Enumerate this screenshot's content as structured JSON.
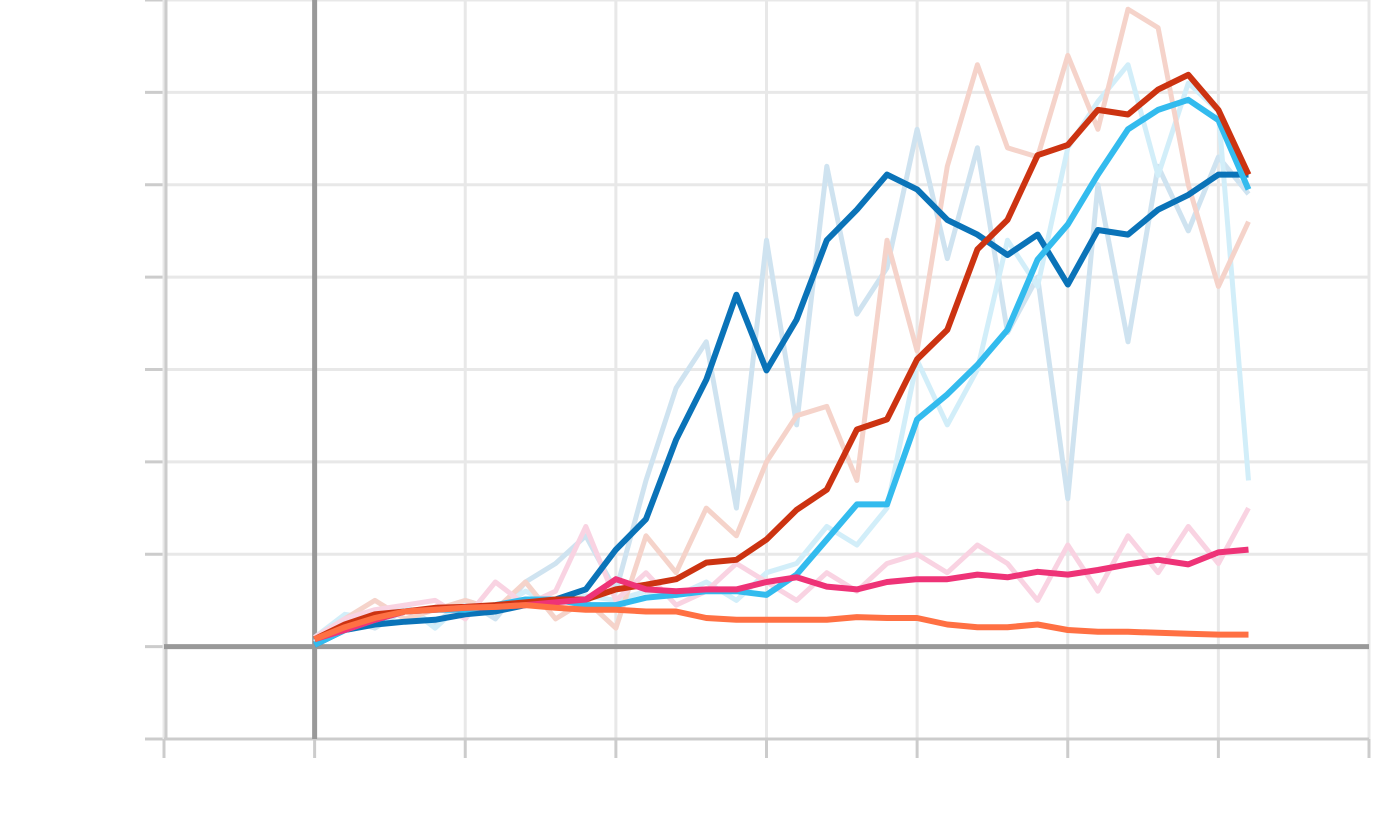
{
  "chart_data": {
    "type": "line",
    "x": [
      0,
      0.2,
      0.4,
      0.6,
      0.8,
      1.0,
      1.2,
      1.4,
      1.6,
      1.8,
      2.0,
      2.2,
      2.4,
      2.6,
      2.8,
      3.0,
      3.2,
      3.4,
      3.6,
      3.8,
      4.0,
      4.2,
      4.4,
      4.6,
      4.8,
      5.0,
      5.2,
      5.4,
      5.6,
      5.8,
      6.0,
      6.2
    ],
    "xlim": [
      -1,
      7
    ],
    "xticks": [
      -1,
      0,
      1,
      2,
      3,
      4,
      5,
      6,
      7
    ],
    "ylim": [
      -1,
      7
    ],
    "yticks": [
      -1,
      0,
      1,
      2,
      3,
      4,
      5,
      6,
      7
    ],
    "grid": true,
    "zero_lines": true,
    "series": [
      {
        "color": "#cfe3f0",
        "width": 5,
        "values": [
          0.05,
          0.3,
          0.2,
          0.4,
          0.25,
          0.5,
          0.3,
          0.7,
          0.9,
          1.2,
          0.6,
          1.8,
          2.8,
          3.3,
          1.5,
          4.4,
          2.4,
          5.2,
          3.6,
          4.1,
          5.6,
          4.2,
          5.4,
          3.4,
          4.0,
          1.6,
          5.0,
          3.3,
          5.2,
          4.5,
          5.3,
          4.9
        ]
      },
      {
        "color": "#d2eef9",
        "width": 5,
        "values": [
          0.1,
          0.35,
          0.3,
          0.45,
          0.2,
          0.5,
          0.4,
          0.6,
          0.45,
          0.55,
          0.5,
          0.6,
          0.55,
          0.7,
          0.5,
          0.8,
          0.9,
          1.3,
          1.1,
          1.5,
          3.1,
          2.4,
          3.0,
          4.4,
          3.9,
          5.4,
          5.9,
          6.3,
          5.1,
          6.1,
          5.8,
          1.8
        ]
      },
      {
        "color": "#f5d3ca",
        "width": 5,
        "values": [
          0.1,
          0.3,
          0.5,
          0.3,
          0.4,
          0.5,
          0.4,
          0.7,
          0.3,
          0.5,
          0.2,
          1.2,
          0.8,
          1.5,
          1.2,
          2.0,
          2.5,
          2.6,
          1.8,
          4.4,
          3.2,
          5.2,
          6.3,
          5.4,
          5.3,
          6.4,
          5.6,
          6.9,
          6.7,
          5.0,
          3.9,
          4.6
        ]
      },
      {
        "color": "#f9d3e2",
        "width": 5,
        "values": [
          0.1,
          0.3,
          0.4,
          0.45,
          0.5,
          0.3,
          0.7,
          0.45,
          0.6,
          1.3,
          0.5,
          0.8,
          0.45,
          0.6,
          0.9,
          0.7,
          0.5,
          0.8,
          0.6,
          0.9,
          1.0,
          0.8,
          1.1,
          0.9,
          0.5,
          1.1,
          0.6,
          1.2,
          0.8,
          1.3,
          0.9,
          1.5
        ]
      },
      {
        "color": "#0a73b8",
        "width": 6,
        "values": [
          0.02,
          0.18,
          0.24,
          0.27,
          0.29,
          0.35,
          0.38,
          0.45,
          0.51,
          0.62,
          1.05,
          1.38,
          2.24,
          2.89,
          3.81,
          2.99,
          3.54,
          4.4,
          4.73,
          5.11,
          4.95,
          4.62,
          4.46,
          4.24,
          4.46,
          3.92,
          4.51,
          4.46,
          4.73,
          4.89,
          5.11,
          5.11
        ]
      },
      {
        "color": "#33bbee",
        "width": 6,
        "values": [
          0.02,
          0.18,
          0.29,
          0.38,
          0.4,
          0.4,
          0.45,
          0.51,
          0.51,
          0.45,
          0.45,
          0.53,
          0.56,
          0.6,
          0.6,
          0.56,
          0.78,
          1.16,
          1.54,
          1.54,
          2.46,
          2.73,
          3.05,
          3.43,
          4.19,
          4.57,
          5.11,
          5.6,
          5.81,
          5.92,
          5.7,
          4.95
        ]
      },
      {
        "color": "#cc3311",
        "width": 6,
        "values": [
          0.08,
          0.24,
          0.35,
          0.38,
          0.42,
          0.43,
          0.45,
          0.48,
          0.51,
          0.51,
          0.62,
          0.67,
          0.73,
          0.91,
          0.94,
          1.16,
          1.48,
          1.7,
          2.35,
          2.46,
          3.11,
          3.43,
          4.3,
          4.62,
          5.32,
          5.43,
          5.81,
          5.76,
          6.03,
          6.19,
          5.81,
          5.11
        ]
      },
      {
        "color": "#ee3377",
        "width": 6,
        "values": [
          0.08,
          0.18,
          0.29,
          0.38,
          0.4,
          0.42,
          0.43,
          0.45,
          0.48,
          0.51,
          0.73,
          0.62,
          0.6,
          0.62,
          0.62,
          0.7,
          0.75,
          0.65,
          0.62,
          0.7,
          0.73,
          0.73,
          0.78,
          0.75,
          0.81,
          0.78,
          0.83,
          0.89,
          0.94,
          0.89,
          1.02,
          1.05
        ]
      },
      {
        "color": "#ff7043",
        "width": 6,
        "values": [
          0.08,
          0.21,
          0.31,
          0.38,
          0.4,
          0.42,
          0.43,
          0.45,
          0.42,
          0.4,
          0.4,
          0.38,
          0.38,
          0.31,
          0.29,
          0.29,
          0.29,
          0.29,
          0.32,
          0.31,
          0.31,
          0.24,
          0.21,
          0.21,
          0.24,
          0.18,
          0.16,
          0.16,
          0.15,
          0.14,
          0.13,
          0.13
        ]
      }
    ]
  }
}
